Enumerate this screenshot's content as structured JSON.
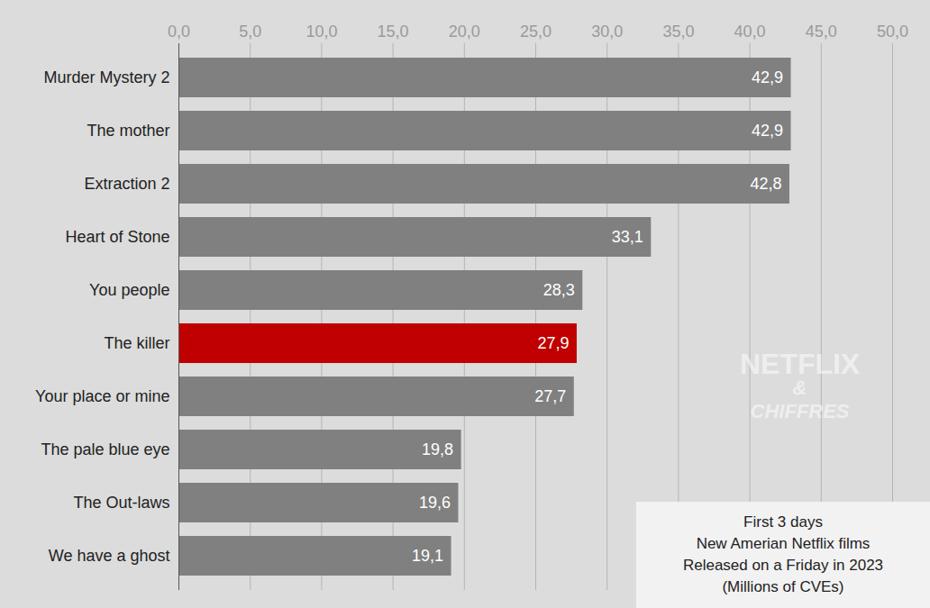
{
  "chart_data": {
    "type": "bar",
    "orientation": "horizontal",
    "categories": [
      "Murder Mystery 2",
      "The mother",
      "Extraction 2",
      "Heart of Stone",
      "You people",
      "The killer",
      "Your place or mine",
      "The pale blue eye",
      "The Out-laws",
      "We have a ghost"
    ],
    "values": [
      42.9,
      42.9,
      42.8,
      33.1,
      28.3,
      27.9,
      27.7,
      19.8,
      19.6,
      19.1
    ],
    "value_labels": [
      "42,9",
      "42,9",
      "42,8",
      "33,1",
      "28,3",
      "27,9",
      "27,7",
      "19,8",
      "19,6",
      "19,1"
    ],
    "colors": [
      "#808080",
      "#808080",
      "#808080",
      "#808080",
      "#808080",
      "#c00000",
      "#808080",
      "#808080",
      "#808080",
      "#808080"
    ],
    "xlim": [
      0,
      50
    ],
    "xticks": [
      {
        "value": 0,
        "label": "0,0"
      },
      {
        "value": 5,
        "label": "5,0"
      },
      {
        "value": 10,
        "label": "10,0"
      },
      {
        "value": 15,
        "label": "15,0"
      },
      {
        "value": 20,
        "label": "20,0"
      },
      {
        "value": 25,
        "label": "25,0"
      },
      {
        "value": 30,
        "label": "30,0"
      },
      {
        "value": 35,
        "label": "35,0"
      },
      {
        "value": 40,
        "label": "40,0"
      },
      {
        "value": 45,
        "label": "45,0"
      },
      {
        "value": 50,
        "label": "50,0"
      }
    ],
    "grid": true,
    "data_labels": true,
    "annotation": [
      "First 3 days",
      "New Amerian Netflix films",
      "Released on a Friday in 2023",
      "(Millions of CVEs)"
    ],
    "watermark": [
      "NETFLIX",
      "&",
      "CHIFFRES"
    ]
  }
}
